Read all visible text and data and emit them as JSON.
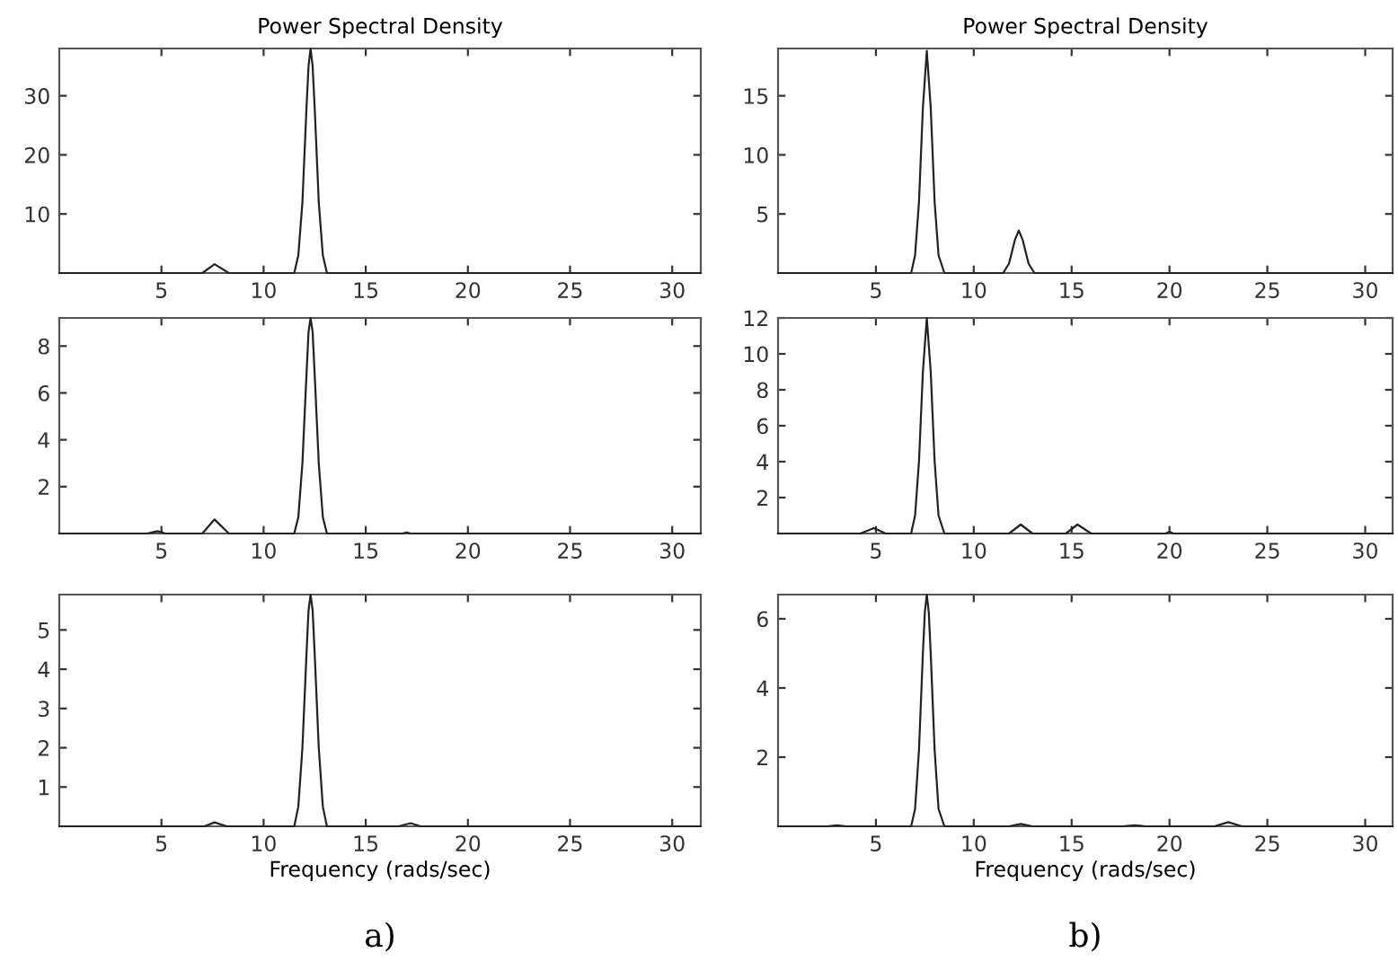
{
  "chart_data": [
    {
      "type": "line",
      "title": "Power Spectral Density",
      "xlim": [
        0,
        31.4
      ],
      "xticks": [
        5,
        10,
        15,
        20,
        25,
        30
      ],
      "ylim": [
        0,
        38
      ],
      "yticks": [
        10,
        20,
        30
      ],
      "grid": false,
      "legend": false,
      "line_style": "solid",
      "series": [
        {
          "color": "#222222",
          "x": [
            0,
            7.0,
            7.6,
            8.3,
            11.5,
            11.7,
            11.9,
            12.1,
            12.2,
            12.3,
            12.4,
            12.5,
            12.7,
            12.9,
            13.1,
            31.4
          ],
          "values": [
            0,
            0,
            1.5,
            0,
            0,
            3,
            12,
            28,
            35,
            38,
            35,
            28,
            12,
            3,
            0,
            0
          ]
        }
      ]
    },
    {
      "type": "line",
      "xlim": [
        0,
        31.4
      ],
      "xticks": [
        5,
        10,
        15,
        20,
        25,
        30
      ],
      "ylim": [
        0,
        9.2
      ],
      "yticks": [
        2,
        4,
        6,
        8
      ],
      "grid": false,
      "legend": false,
      "line_style": "solid",
      "series": [
        {
          "color": "#222222",
          "x": [
            0,
            4.3,
            4.8,
            5.2,
            7.0,
            7.6,
            8.3,
            11.5,
            11.7,
            11.9,
            12.1,
            12.2,
            12.3,
            12.4,
            12.5,
            12.7,
            12.9,
            13.1,
            16.8,
            17.0,
            17.2,
            31.4
          ],
          "values": [
            0,
            0,
            0.1,
            0,
            0,
            0.6,
            0,
            0,
            0.7,
            3,
            6.8,
            8.6,
            9.2,
            8.6,
            6.8,
            3,
            0.7,
            0,
            0,
            0.05,
            0,
            0
          ]
        }
      ]
    },
    {
      "type": "line",
      "xlabel": "Frequency (rads/sec)",
      "annotations": [
        "a)"
      ],
      "xlim": [
        0,
        31.4
      ],
      "xticks": [
        5,
        10,
        15,
        20,
        25,
        30
      ],
      "ylim": [
        0,
        5.9
      ],
      "yticks": [
        1,
        2,
        3,
        4,
        5
      ],
      "grid": false,
      "legend": false,
      "line_style": "solid",
      "series": [
        {
          "color": "#222222",
          "x": [
            0,
            7.1,
            7.6,
            8.2,
            11.5,
            11.7,
            11.9,
            12.1,
            12.2,
            12.3,
            12.4,
            12.5,
            12.7,
            12.9,
            13.1,
            16.6,
            17.2,
            17.7,
            31.4
          ],
          "values": [
            0,
            0,
            0.1,
            0,
            0,
            0.5,
            2,
            4.4,
            5.5,
            5.9,
            5.5,
            4.4,
            2,
            0.5,
            0,
            0,
            0.08,
            0,
            0
          ]
        }
      ]
    },
    {
      "type": "line",
      "title": "Power Spectral Density",
      "xlim": [
        0,
        31.4
      ],
      "xticks": [
        5,
        10,
        15,
        20,
        25,
        30
      ],
      "ylim": [
        0,
        19
      ],
      "yticks": [
        5,
        10,
        15
      ],
      "grid": false,
      "legend": false,
      "line_style": "solid",
      "series": [
        {
          "color": "#222222",
          "x": [
            0,
            6.8,
            7.0,
            7.2,
            7.4,
            7.6,
            7.8,
            8.0,
            8.2,
            8.5,
            11.5,
            11.8,
            12.1,
            12.3,
            12.5,
            12.8,
            13.1,
            31.4
          ],
          "values": [
            0,
            0,
            1.5,
            6,
            14,
            18.8,
            14,
            6,
            1.5,
            0,
            0,
            0.8,
            2.8,
            3.6,
            2.8,
            0.8,
            0,
            0
          ]
        }
      ]
    },
    {
      "type": "line",
      "xlim": [
        0,
        31.4
      ],
      "xticks": [
        5,
        10,
        15,
        20,
        25,
        30
      ],
      "ylim": [
        0,
        12
      ],
      "yticks": [
        2,
        4,
        6,
        8,
        10,
        12
      ],
      "grid": false,
      "legend": false,
      "line_style": "solid",
      "series": [
        {
          "color": "#222222",
          "x": [
            0,
            4.2,
            4.9,
            5.5,
            6.8,
            7.0,
            7.2,
            7.4,
            7.6,
            7.8,
            8.0,
            8.2,
            8.5,
            11.8,
            12.4,
            13.0,
            14.7,
            15.3,
            16.0,
            19.8,
            20.0,
            20.2,
            31.4
          ],
          "values": [
            0,
            0,
            0.3,
            0,
            0,
            1,
            4,
            9,
            12,
            9,
            4,
            1,
            0,
            0,
            0.5,
            0,
            0,
            0.5,
            0,
            0,
            0.1,
            0,
            0
          ]
        }
      ]
    },
    {
      "type": "line",
      "xlabel": "Frequency (rads/sec)",
      "annotations": [
        "b)"
      ],
      "xlim": [
        0,
        31.4
      ],
      "xticks": [
        5,
        10,
        15,
        20,
        25,
        30
      ],
      "ylim": [
        0,
        6.7
      ],
      "yticks": [
        2,
        4,
        6
      ],
      "grid": false,
      "legend": false,
      "line_style": "solid",
      "series": [
        {
          "color": "#222222",
          "x": [
            0,
            2.5,
            3.0,
            3.5,
            6.8,
            7.0,
            7.2,
            7.4,
            7.5,
            7.6,
            7.7,
            7.8,
            8.0,
            8.2,
            8.5,
            11.8,
            12.4,
            13.0,
            17.6,
            18.2,
            18.8,
            22.3,
            23.0,
            23.7,
            31.4
          ],
          "values": [
            0,
            0,
            0.03,
            0,
            0,
            0.5,
            2.2,
            5,
            6.2,
            6.7,
            6.2,
            5,
            2.2,
            0.5,
            0,
            0,
            0.07,
            0,
            0,
            0.03,
            0,
            0,
            0.12,
            0,
            0
          ]
        }
      ]
    }
  ]
}
